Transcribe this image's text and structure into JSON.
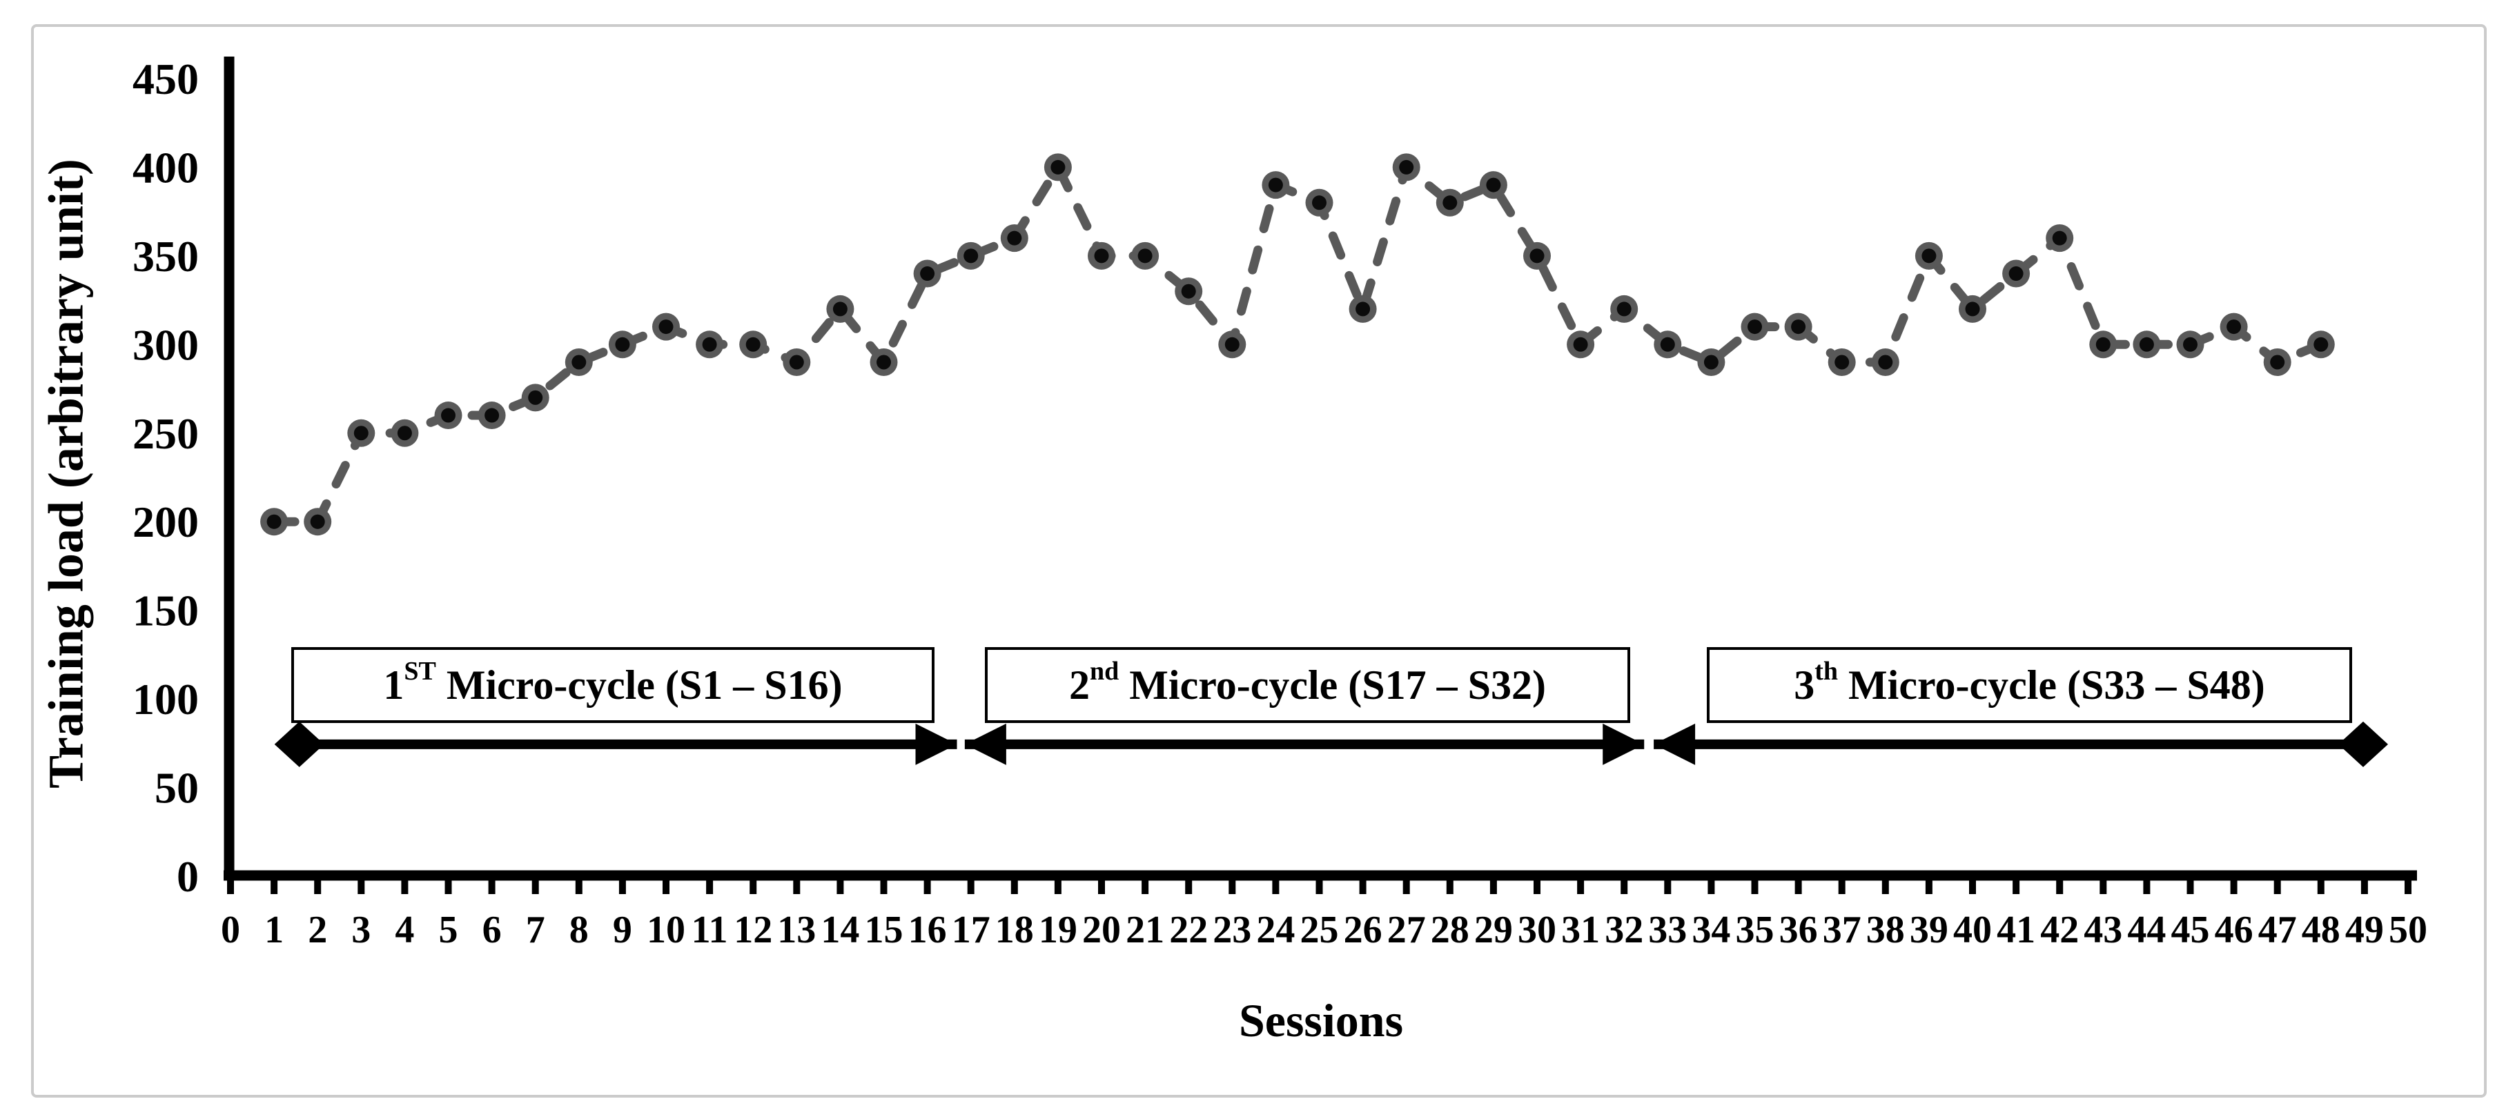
{
  "chart_data": {
    "type": "line",
    "title": "",
    "xlabel": "Sessions",
    "ylabel": "Training load (arbitrary unit)",
    "x": [
      1,
      2,
      3,
      4,
      5,
      6,
      7,
      8,
      9,
      10,
      11,
      12,
      13,
      14,
      15,
      16,
      17,
      18,
      19,
      20,
      21,
      22,
      23,
      24,
      25,
      26,
      27,
      28,
      29,
      30,
      31,
      32,
      33,
      34,
      35,
      36,
      37,
      38,
      39,
      40,
      41,
      42,
      43,
      44,
      45,
      46,
      47,
      48
    ],
    "values": [
      200,
      200,
      250,
      250,
      260,
      260,
      270,
      290,
      300,
      310,
      300,
      300,
      290,
      320,
      290,
      340,
      350,
      360,
      400,
      350,
      350,
      330,
      300,
      390,
      380,
      320,
      400,
      380,
      390,
      350,
      300,
      320,
      300,
      290,
      310,
      310,
      290,
      290,
      350,
      320,
      340,
      360,
      300,
      300,
      300,
      310,
      290,
      300
    ],
    "xlim": [
      0,
      50
    ],
    "ylim": [
      0,
      450
    ],
    "x_ticks": [
      0,
      1,
      2,
      3,
      4,
      5,
      6,
      7,
      8,
      9,
      10,
      11,
      12,
      13,
      14,
      15,
      16,
      17,
      18,
      19,
      20,
      21,
      22,
      23,
      24,
      25,
      26,
      27,
      28,
      29,
      30,
      31,
      32,
      33,
      34,
      35,
      36,
      37,
      38,
      39,
      40,
      41,
      42,
      43,
      44,
      45,
      46,
      47,
      48,
      49,
      50
    ],
    "y_ticks": [
      0,
      50,
      100,
      150,
      200,
      250,
      300,
      350,
      400,
      450
    ],
    "grid": false,
    "legend": "none",
    "line_style": "dashed",
    "line_color": "#595959",
    "marker_outer_color": "#595959",
    "marker_inner_color": "#0b0b0b",
    "axis_color": "#000000",
    "annotations": {
      "arrow_level_value": 60,
      "cycles": [
        {
          "label_base": "1",
          "label_sup": "ST",
          "label_rest": " Micro-cycle (S1 – S16)",
          "arrow_from_s": 1.58,
          "arrow_to_s": 16.68,
          "start_cap": "diamond",
          "end_cap": "arrow"
        },
        {
          "label_base": "2",
          "label_sup": "nd",
          "label_rest": " Micro-cycle (S17 – S32)",
          "arrow_from_s": 16.86,
          "arrow_to_s": 32.46,
          "start_cap": "arrow",
          "end_cap": "arrow"
        },
        {
          "label_base": "3",
          "label_sup": "th",
          "label_rest": " Micro-cycle (S33 – S48)",
          "arrow_from_s": 32.68,
          "arrow_to_s": 48.97,
          "start_cap": "arrow",
          "end_cap": "diamond"
        }
      ]
    }
  }
}
